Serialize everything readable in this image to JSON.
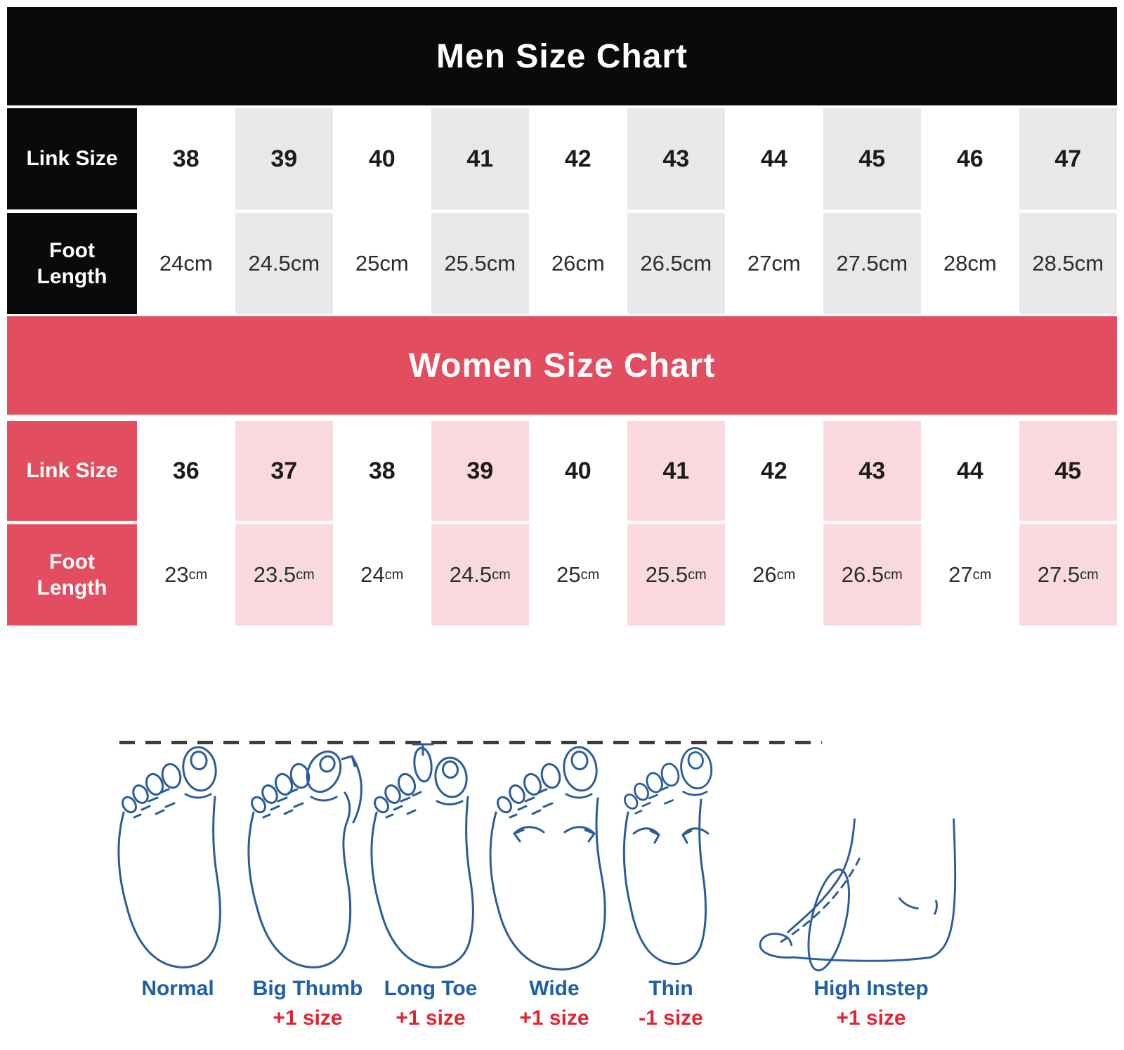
{
  "chart_data": [
    {
      "type": "table",
      "title": "Men Size Chart",
      "row_headers": [
        "Link Size",
        "Foot Length"
      ],
      "columns": [
        "38",
        "39",
        "40",
        "41",
        "42",
        "43",
        "44",
        "45",
        "46",
        "47"
      ],
      "rows": [
        [
          "24cm",
          "24.5cm",
          "25cm",
          "25.5cm",
          "26cm",
          "26.5cm",
          "27cm",
          "27.5cm",
          "28cm",
          "28.5cm"
        ]
      ]
    },
    {
      "type": "table",
      "title": "Women Size Chart",
      "row_headers": [
        "Link Size",
        "Foot Length"
      ],
      "columns": [
        "36",
        "37",
        "38",
        "39",
        "40",
        "41",
        "42",
        "43",
        "44",
        "45"
      ],
      "rows": [
        [
          "23cm",
          "23.5cm",
          "24cm",
          "24.5cm",
          "25cm",
          "25.5cm",
          "26cm",
          "26.5cm",
          "27cm",
          "27.5cm"
        ]
      ]
    }
  ],
  "foot_guide": {
    "items": [
      {
        "icon": "normal-foot-icon",
        "label": "Normal",
        "adjustment": ""
      },
      {
        "icon": "big-thumb-foot-icon",
        "label": "Big Thumb",
        "adjustment": "+1 size"
      },
      {
        "icon": "long-toe-foot-icon",
        "label": "Long Toe",
        "adjustment": "+1 size"
      },
      {
        "icon": "wide-foot-icon",
        "label": "Wide",
        "adjustment": "+1 size"
      },
      {
        "icon": "thin-foot-icon",
        "label": "Thin",
        "adjustment": "-1 size"
      },
      {
        "icon": "high-instep-foot-icon",
        "label": "High Instep",
        "adjustment": "+1 size"
      }
    ]
  },
  "colors": {
    "men_header_bg": "#0a0a0a",
    "men_shaded_column": "#e8e8e8",
    "women_header_bg": "#e24d5f",
    "women_shaded_column": "#f9d9de",
    "foot_outline_blue": "#2a5c9c",
    "guide_label_blue": "#1d5fa9",
    "guide_adjust_red": "#e02530"
  }
}
